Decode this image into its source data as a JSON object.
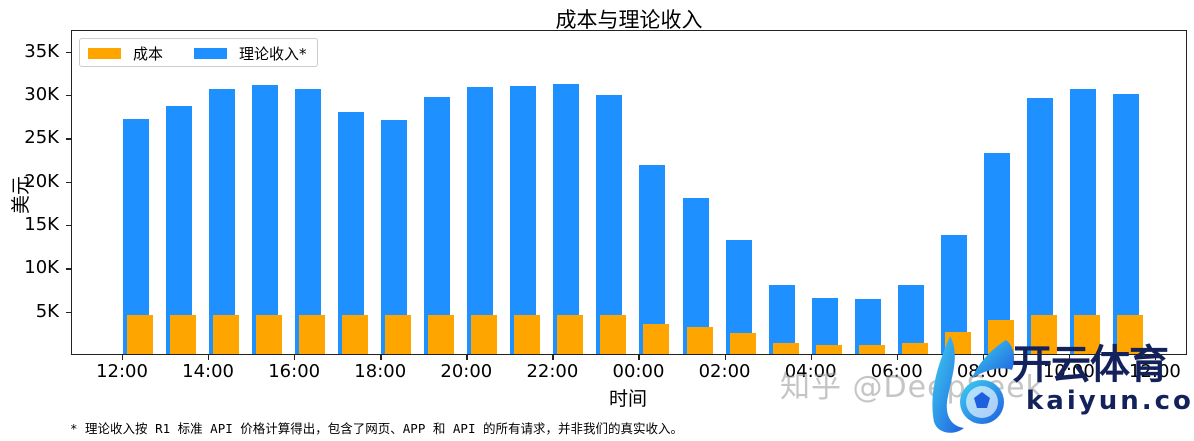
{
  "chart_data": {
    "type": "bar",
    "title": "成本与理论收入",
    "xlabel": "时间",
    "ylabel": "美元",
    "ylim": [
      0,
      37500
    ],
    "yticks": [
      5000,
      10000,
      15000,
      20000,
      25000,
      30000,
      35000
    ],
    "ytick_labels": [
      "5K",
      "10K",
      "15K",
      "20K",
      "25K",
      "30K",
      "35K"
    ],
    "xtick_labels": [
      "12:00",
      "14:00",
      "16:00",
      "18:00",
      "20:00",
      "22:00",
      "00:00",
      "02:00",
      "04:00",
      "06:00",
      "08:00",
      "10:00",
      "12:00"
    ],
    "categories": [
      "12:00",
      "13:00",
      "14:00",
      "15:00",
      "16:00",
      "17:00",
      "18:00",
      "19:00",
      "20:00",
      "21:00",
      "22:00",
      "23:00",
      "00:00",
      "01:00",
      "02:00",
      "03:00",
      "04:00",
      "05:00",
      "06:00",
      "07:00",
      "08:00",
      "09:00",
      "10:00",
      "11:00"
    ],
    "series": [
      {
        "name": "成本",
        "color": "#FFA500",
        "values": [
          4500,
          4500,
          4500,
          4500,
          4500,
          4500,
          4500,
          4500,
          4500,
          4500,
          4500,
          4500,
          3500,
          3100,
          2400,
          1300,
          1000,
          1000,
          1300,
          2500,
          3900,
          4500,
          4500,
          4500
        ]
      },
      {
        "name": "理论收入*",
        "color": "#1E90FF",
        "values": [
          27100,
          28600,
          30600,
          31000,
          30600,
          27900,
          27000,
          29600,
          30800,
          30900,
          31100,
          29900,
          21800,
          18000,
          13100,
          8000,
          6500,
          6300,
          8000,
          13700,
          23200,
          29500,
          30600,
          30000
        ]
      }
    ],
    "legend_position": "upper left",
    "grid": false
  },
  "legend": {
    "cost_label": "成本",
    "revenue_label": "理论收入*"
  },
  "footnote": "* 理论收入按 R1 标准 API 价格计算得出，包含了网页、APP 和 API 的所有请求，并非我们的真实收入。",
  "watermark": {
    "source_text": "知乎 @DeepSeek",
    "brand_cn": "开云体育",
    "brand_en": "kaiyun.com"
  }
}
